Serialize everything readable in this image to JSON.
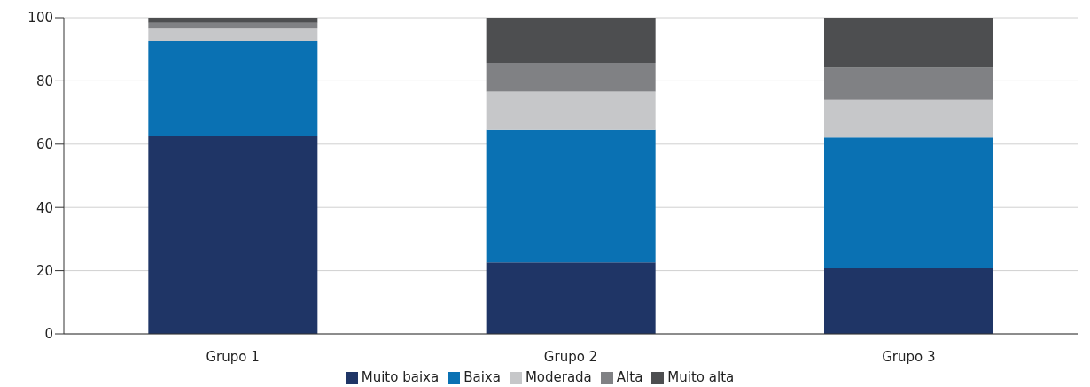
{
  "chart_data": {
    "type": "bar",
    "stacked": true,
    "categories": [
      "Grupo 1",
      "Grupo 2",
      "Grupo 3"
    ],
    "series": [
      {
        "name": "Muito baixa",
        "color": "#1f3566",
        "values": [
          62.5,
          22.6,
          20.7
        ]
      },
      {
        "name": "Baixa",
        "color": "#0a71b3",
        "values": [
          30.2,
          41.9,
          41.4
        ]
      },
      {
        "name": "Moderada",
        "color": "#c6c7c9",
        "values": [
          3.9,
          12.1,
          11.9
        ]
      },
      {
        "name": "Alta",
        "color": "#808184",
        "values": [
          1.8,
          9.1,
          10.2
        ]
      },
      {
        "name": "Muito alta",
        "color": "#4d4e50",
        "values": [
          1.6,
          14.3,
          15.8
        ]
      }
    ],
    "ylim": [
      0,
      100
    ],
    "yticks": [
      0,
      20,
      40,
      60,
      80,
      100
    ],
    "grid": "y",
    "legend": "bottom"
  }
}
